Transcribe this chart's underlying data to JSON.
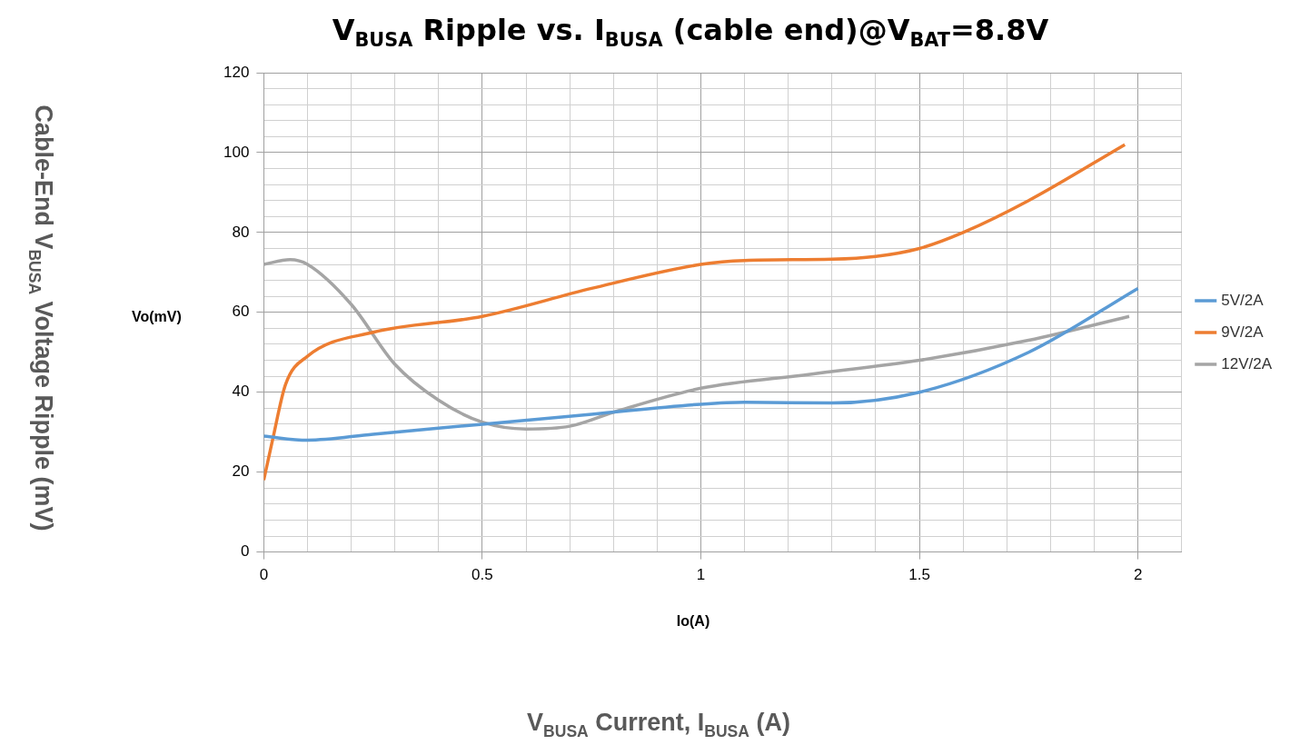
{
  "chart_data": {
    "type": "line",
    "title": "V$_{BUSA}$ Ripple vs. I$_{BUSA}$ (cable end)@V$_{BAT}$=8.8V",
    "xlabel": "Io(A)",
    "ylabel": "Vo(mV)",
    "annotations": [
      "Cable-End V$_{BUSA}$ Voltage Ripple (mV)",
      "V$_{BUSA}$ Current, I$_{BUSA}$ (A)"
    ],
    "xlim": [
      0,
      2.1
    ],
    "ylim": [
      0,
      120
    ],
    "xticks": [
      0,
      {
        "value": 0.1,
        "label": null
      },
      {
        "value": 0.2,
        "label": null
      },
      {
        "value": 0.3,
        "label": null
      },
      {
        "value": 0.4,
        "label": null
      },
      0.5,
      {
        "value": 0.6,
        "label": null
      },
      {
        "value": 0.7,
        "label": null
      },
      {
        "value": 0.8,
        "label": null
      },
      {
        "value": 0.9,
        "label": null
      },
      1,
      {
        "value": 1.1,
        "label": null
      },
      {
        "value": 1.2,
        "label": null
      },
      {
        "value": 1.3,
        "label": null
      },
      {
        "value": 1.4,
        "label": null
      },
      1.5,
      {
        "value": 1.6,
        "label": null
      },
      {
        "value": 1.7,
        "label": null
      },
      {
        "value": 1.8,
        "label": null
      },
      {
        "value": 1.9,
        "label": null
      },
      2,
      {
        "value": 2.1,
        "label": null
      }
    ],
    "yticks": [
      0,
      {
        "value": 4,
        "label": null
      },
      {
        "value": 8,
        "label": null
      },
      {
        "value": 12,
        "label": null
      },
      {
        "value": 16,
        "label": null
      },
      20,
      {
        "value": 24,
        "label": null
      },
      {
        "value": 28,
        "label": null
      },
      {
        "value": 32,
        "label": null
      },
      {
        "value": 36,
        "label": null
      },
      40,
      {
        "value": 44,
        "label": null
      },
      {
        "value": 48,
        "label": null
      },
      {
        "value": 52,
        "label": null
      },
      {
        "value": 56,
        "label": null
      },
      60,
      {
        "value": 64,
        "label": null
      },
      {
        "value": 68,
        "label": null
      },
      {
        "value": 72,
        "label": null
      },
      {
        "value": 76,
        "label": null
      },
      80,
      {
        "value": 84,
        "label": null
      },
      {
        "value": 88,
        "label": null
      },
      {
        "value": 92,
        "label": null
      },
      {
        "value": 96,
        "label": null
      },
      100,
      {
        "value": 104,
        "label": null
      },
      {
        "value": 108,
        "label": null
      },
      {
        "value": 112,
        "label": null
      },
      {
        "value": 116,
        "label": null
      },
      120
    ],
    "grid": true,
    "legend": "right",
    "marker": "none",
    "line_style": "solid",
    "series": [
      {
        "name": "5V/2A",
        "color": "#5b9bd5",
        "x": [
          0,
          0.1,
          0.25,
          0.5,
          0.75,
          1,
          1.1,
          1.3,
          1.5,
          1.75,
          2
        ],
        "values": [
          29,
          28,
          29.5,
          32,
          34.5,
          37,
          37.5,
          37.3,
          40,
          50,
          66
        ]
      },
      {
        "name": "9V/2A",
        "color": "#ed7d31",
        "x": [
          0,
          0.02,
          0.05,
          0.1,
          0.25,
          0.5,
          0.75,
          1,
          1.1,
          1.3,
          1.4,
          1.5,
          1.6,
          1.75,
          1.97
        ],
        "values": [
          18,
          28,
          42,
          49,
          55,
          59,
          66,
          72,
          73,
          73.3,
          74,
          76,
          80,
          88,
          102
        ]
      },
      {
        "name": "12V/2A",
        "color": "#a5a5a5",
        "x": [
          0,
          0.06,
          0.1,
          0.2,
          0.3,
          0.4,
          0.5,
          0.6,
          0.7,
          0.8,
          1,
          1.25,
          1.5,
          1.75,
          1.98
        ],
        "values": [
          72,
          73.2,
          72,
          62,
          47,
          38,
          32.5,
          30.8,
          31.5,
          35,
          41,
          44.5,
          48,
          53,
          59
        ]
      }
    ]
  }
}
